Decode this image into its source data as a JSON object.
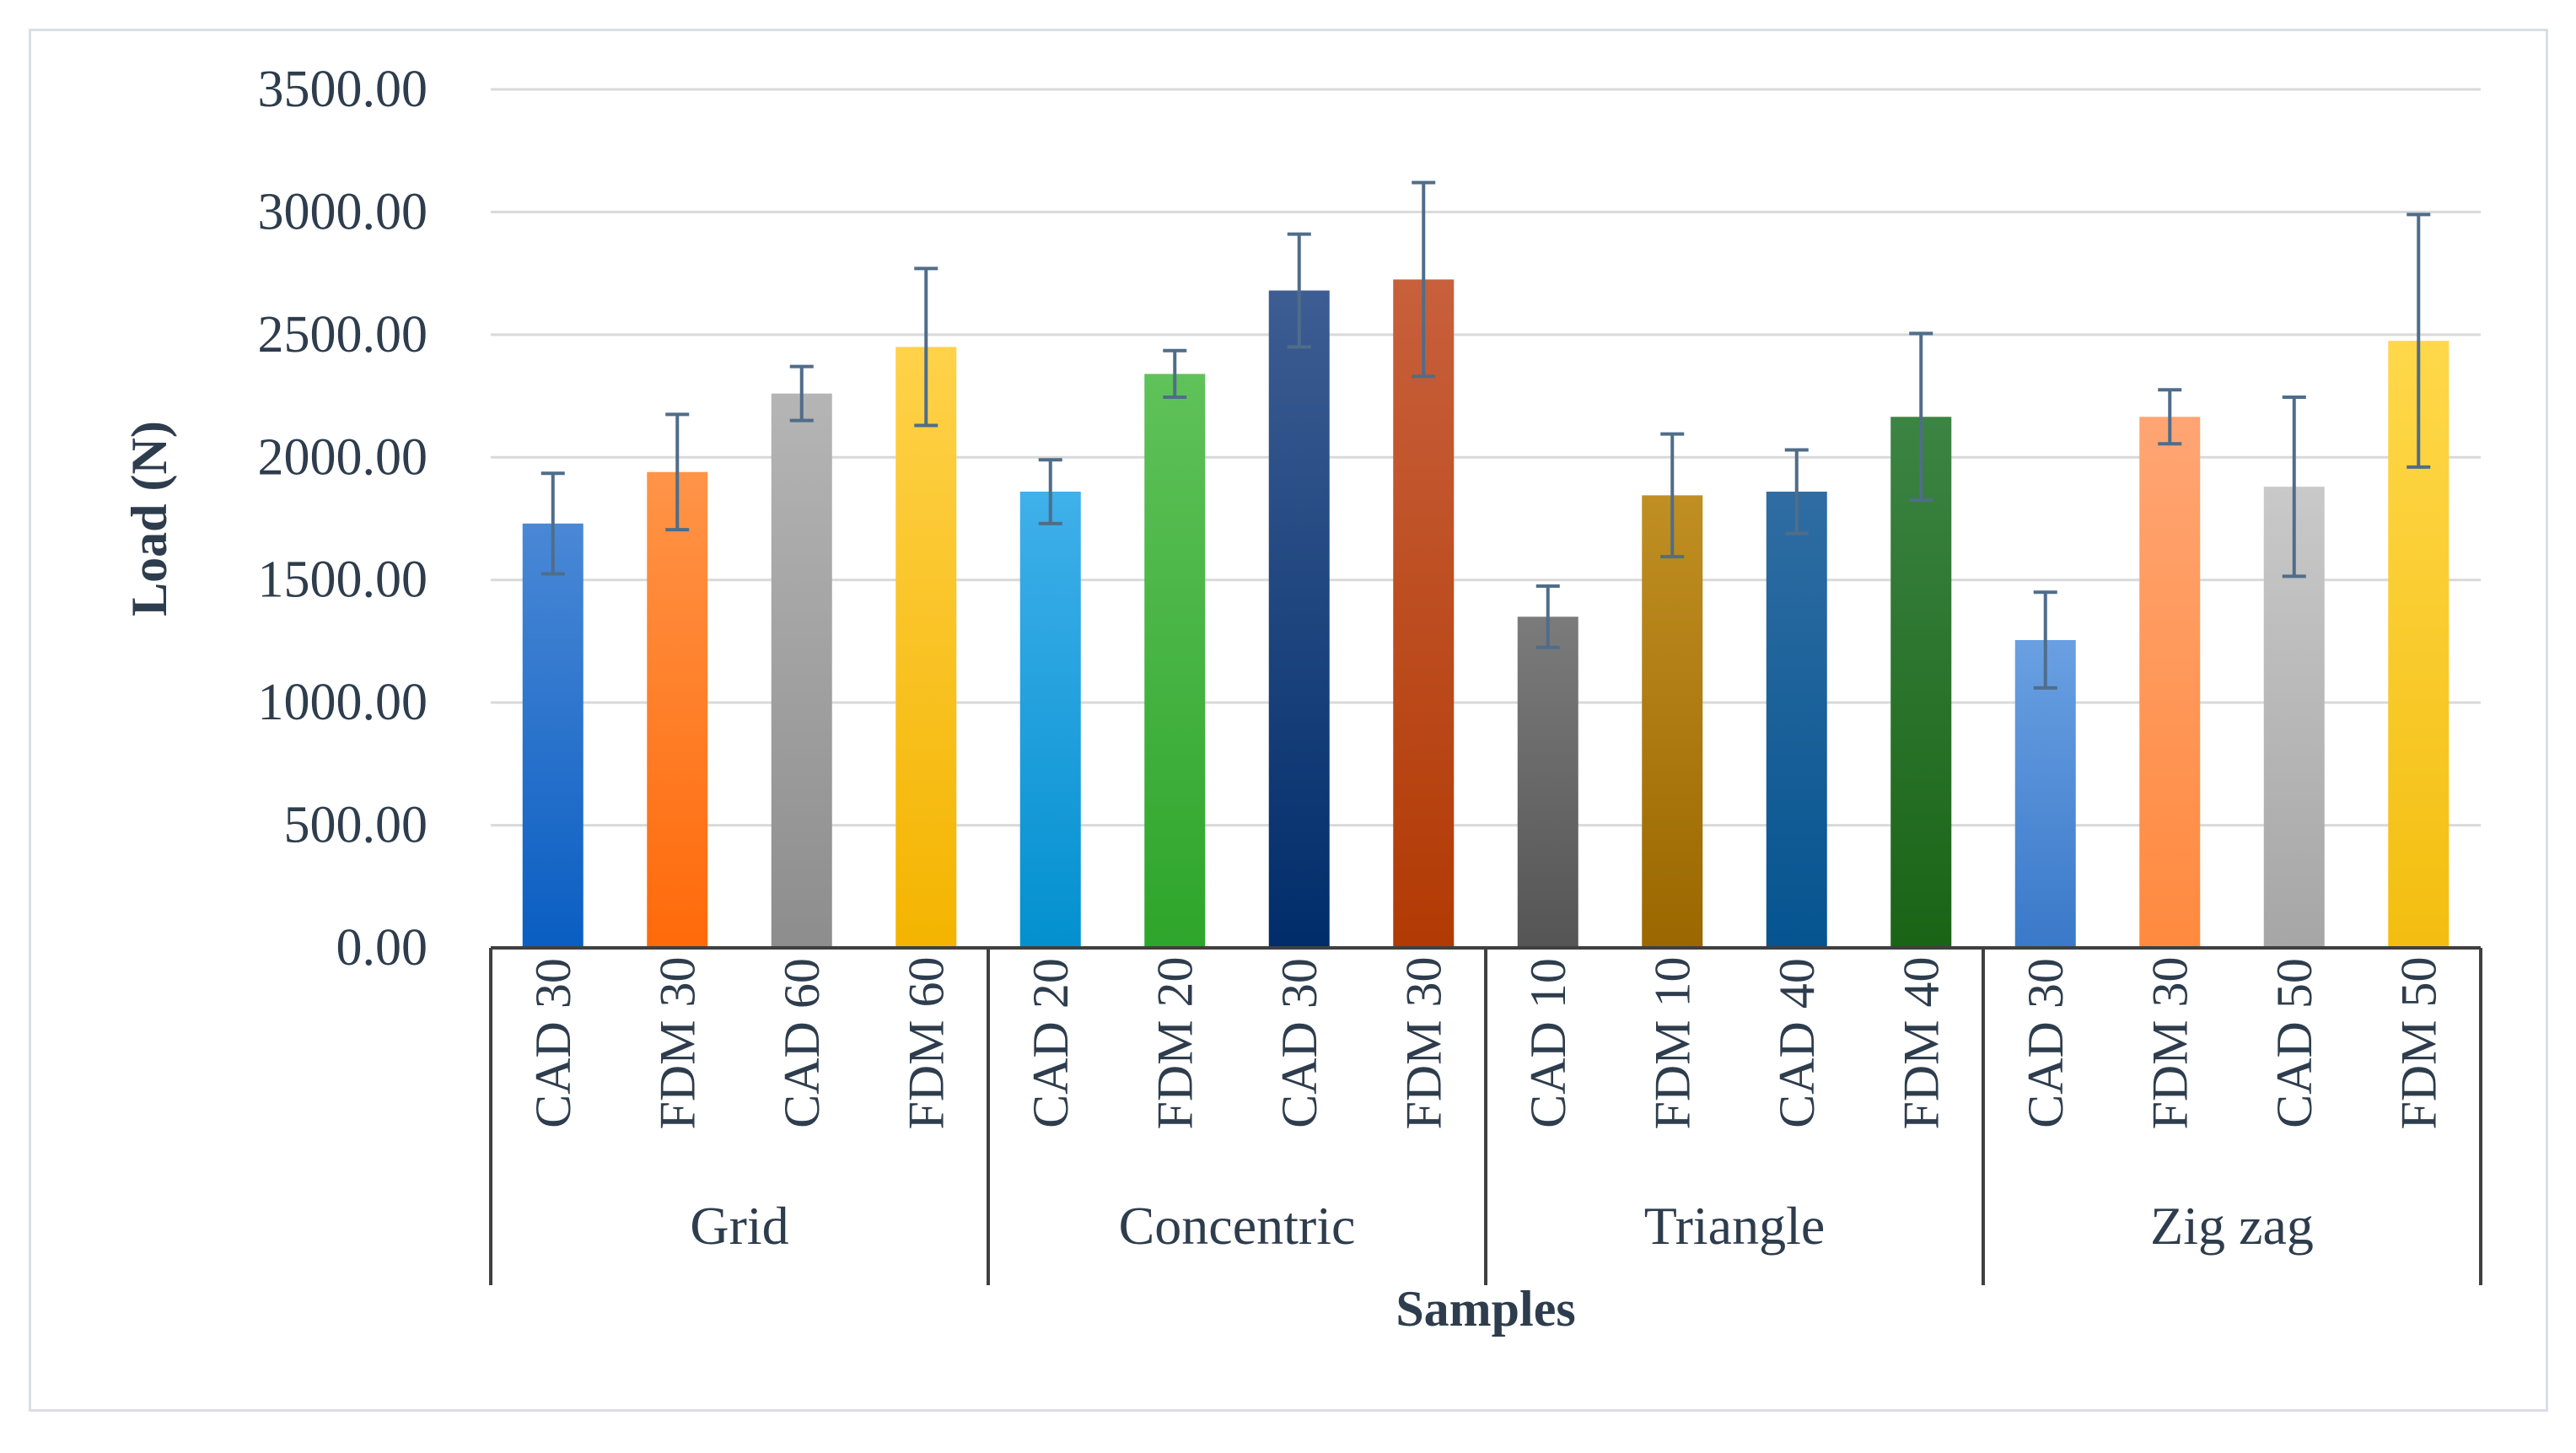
{
  "chart_data": {
    "type": "bar",
    "title": "",
    "xlabel": "Samples",
    "ylabel": "Load (N)",
    "ylim": [
      0,
      3500
    ],
    "yticks": [
      "0.00",
      "500.00",
      "1000.00",
      "1500.00",
      "2000.00",
      "2500.00",
      "3000.00",
      "3500.00"
    ],
    "grid": true,
    "groups": [
      {
        "name": "Grid",
        "categories": [
          "CAD 30",
          "FDM 30",
          "CAD 60",
          "FDM 60"
        ]
      },
      {
        "name": "Concentric",
        "categories": [
          "CAD 20",
          "FDM 20",
          "CAD 30",
          "FDM 30"
        ]
      },
      {
        "name": "Triangle",
        "categories": [
          "CAD 10",
          "FDM 10",
          "CAD 40",
          "FDM 40"
        ]
      },
      {
        "name": "Zig zag",
        "categories": [
          "CAD 30",
          "FDM 30",
          "CAD 50",
          "FDM 50"
        ]
      }
    ],
    "values": [
      1730,
      1940,
      2260,
      2450,
      1860,
      2340,
      2680,
      2725,
      1350,
      1845,
      1860,
      2165,
      1255,
      2165,
      1880,
      2475
    ],
    "errors": [
      205,
      235,
      110,
      320,
      130,
      95,
      230,
      395,
      125,
      250,
      170,
      340,
      195,
      110,
      365,
      515
    ],
    "colors": [
      [
        "#4a88d6",
        "#0a5ec2"
      ],
      [
        "#ff9448",
        "#ff6a0a"
      ],
      [
        "#b5b5b5",
        "#8d8d8d"
      ],
      [
        "#ffd24a",
        "#f4b400"
      ],
      [
        "#3fb0ea",
        "#0390cf"
      ],
      [
        "#5fc25a",
        "#2ea52b"
      ],
      [
        "#3d5d93",
        "#002d6a"
      ],
      [
        "#c8603c",
        "#b23a04"
      ],
      [
        "#7b7b7b",
        "#555555"
      ],
      [
        "#c08f23",
        "#9a6700"
      ],
      [
        "#2f6da3",
        "#055490"
      ],
      [
        "#3c8443",
        "#1a6416"
      ],
      [
        "#6aa0e2",
        "#3a79c9"
      ],
      [
        "#ffa573",
        "#ff8a3f"
      ],
      [
        "#c9c9c9",
        "#a6a6a6"
      ],
      [
        "#ffd84a",
        "#f3be10"
      ]
    ],
    "error_bar_color": "#4f6d8a"
  }
}
